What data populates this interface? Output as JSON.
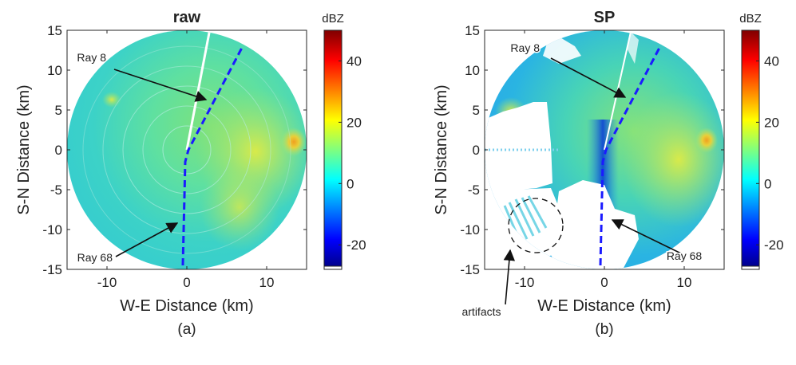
{
  "colorbar_colors": [
    "#00007f",
    "#0000ff",
    "#007fff",
    "#00ffff",
    "#7fff7f",
    "#ffff00",
    "#ff7f00",
    "#ff0000",
    "#7f0000"
  ],
  "chart_data": [
    {
      "type": "heatmap",
      "title": "raw",
      "caption": "(a)",
      "xlabel": "W-E Distance (km)",
      "ylabel": "S-N Distance (km)",
      "xlim": [
        -15,
        15
      ],
      "ylim": [
        -15,
        15
      ],
      "xticks": [
        "-10",
        "0",
        "10"
      ],
      "yticks": [
        "15",
        "10",
        "5",
        "0",
        "-5",
        "-10",
        "-15"
      ],
      "colorbar": {
        "unit": "dBZ",
        "range": [
          -28,
          50
        ],
        "ticks": [
          "40",
          "20",
          "0",
          "-20"
        ]
      },
      "annotations": [
        {
          "label": "Ray 8",
          "target": [
            2.4,
            6.3
          ]
        },
        {
          "label": "Ray 68",
          "target": [
            -1.2,
            -9.2
          ]
        }
      ],
      "dashed_path": [
        [
          -0.5,
          -14.5
        ],
        [
          -0.2,
          -1.5
        ],
        [
          0.2,
          0
        ],
        [
          7,
          13
        ]
      ]
    },
    {
      "type": "heatmap",
      "title": "SP",
      "caption": "(b)",
      "xlabel": "W-E Distance (km)",
      "ylabel": "S-N Distance (km)",
      "xlim": [
        -15,
        15
      ],
      "ylim": [
        -15,
        15
      ],
      "xticks": [
        "-10",
        "0",
        "10"
      ],
      "yticks": [
        "15",
        "10",
        "5",
        "0",
        "-5",
        "-10",
        "-15"
      ],
      "colorbar": {
        "unit": "dBZ",
        "range": [
          -28,
          50
        ],
        "ticks": [
          "40",
          "20",
          "0",
          "-20"
        ]
      },
      "annotations": [
        {
          "label": "Ray 8",
          "target": [
            2.6,
            6.6
          ]
        },
        {
          "label": "Ray 68",
          "target": [
            1.0,
            -8.8
          ]
        },
        {
          "label": "artifacts",
          "target": [
            -11.8,
            -12.6
          ]
        }
      ],
      "dashed_path": [
        [
          -0.5,
          -14.5
        ],
        [
          -0.2,
          -1.5
        ],
        [
          0.2,
          0
        ],
        [
          7,
          13
        ]
      ]
    }
  ]
}
